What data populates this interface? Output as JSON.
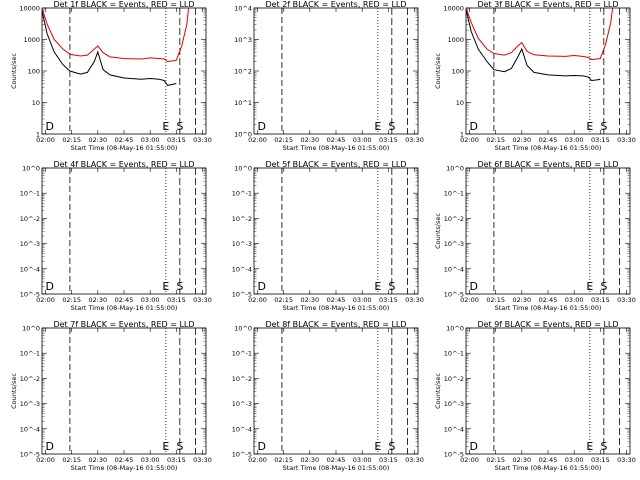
{
  "chart_data": [
    {
      "type": "line",
      "title": "Det 1f BLACK = Events, RED = LLD",
      "xlabel": "Start Time (08-May-16 01:55:00)",
      "ylabel": "Counts/sec",
      "x_ticks": [
        "02:00",
        "02:15",
        "02:30",
        "02:45",
        "03:00",
        "03:15",
        "03:30"
      ],
      "y_scale": "log",
      "y_ticks": [
        "1",
        "10",
        "100",
        "1000",
        "10000"
      ],
      "ylim": [
        1,
        10000
      ],
      "series": [
        {
          "color": "#000000",
          "x": [
            "01:58",
            "02:01",
            "02:05",
            "02:10",
            "02:14",
            "02:20",
            "02:24",
            "02:28",
            "02:30",
            "02:33",
            "02:37",
            "02:45",
            "02:55",
            "03:00",
            "03:05",
            "03:08",
            "03:10",
            "03:13",
            "03:15"
          ],
          "values": [
            8000,
            1500,
            400,
            160,
            100,
            80,
            90,
            200,
            400,
            110,
            75,
            60,
            55,
            58,
            55,
            50,
            35,
            38,
            40
          ]
        },
        {
          "color": "#e00000",
          "x": [
            "01:58",
            "02:01",
            "02:05",
            "02:10",
            "02:14",
            "02:20",
            "02:24",
            "02:28",
            "02:30",
            "02:33",
            "02:37",
            "02:45",
            "02:55",
            "03:00",
            "03:05",
            "03:08",
            "03:10",
            "03:13",
            "03:15",
            "03:18",
            "03:21",
            "03:22"
          ],
          "values": [
            10000,
            3000,
            1000,
            500,
            340,
            300,
            320,
            500,
            620,
            380,
            280,
            250,
            240,
            260,
            250,
            240,
            200,
            210,
            220,
            600,
            3000,
            10000
          ]
        }
      ],
      "markers": [
        "D",
        "E",
        "S"
      ]
    },
    {
      "type": "line",
      "title": "Det 2f BLACK = Events, RED = LLD",
      "xlabel": "Start Time (08-May-16 01:55:00)",
      "ylabel": "",
      "x_ticks": [
        "02:00",
        "02:15",
        "02:30",
        "02:45",
        "03:00",
        "03:15",
        "03:30"
      ],
      "y_scale": "log",
      "y_ticks": [
        "10^0",
        "10^1",
        "10^2",
        "10^3",
        "10^4"
      ],
      "ylim": [
        1,
        10000
      ],
      "series": [],
      "markers": [
        "D",
        "E",
        "S"
      ]
    },
    {
      "type": "line",
      "title": "Det 3f BLACK = Events, RED = LLD",
      "xlabel": "Start Time (08-May-16 01:55:00)",
      "ylabel": "Counts/sec",
      "x_ticks": [
        "02:00",
        "02:15",
        "02:30",
        "02:45",
        "03:00",
        "03:15",
        "03:30"
      ],
      "y_scale": "log",
      "y_ticks": [
        "1",
        "10",
        "100",
        "1000",
        "10000"
      ],
      "ylim": [
        1,
        10000
      ],
      "series": [
        {
          "color": "#000000",
          "x": [
            "01:58",
            "02:01",
            "02:05",
            "02:10",
            "02:14",
            "02:20",
            "02:24",
            "02:28",
            "02:30",
            "02:33",
            "02:37",
            "02:45",
            "02:55",
            "03:00",
            "03:05",
            "03:08",
            "03:10",
            "03:13",
            "03:15"
          ],
          "values": [
            9000,
            1800,
            500,
            200,
            110,
            95,
            120,
            300,
            500,
            150,
            90,
            75,
            70,
            72,
            70,
            65,
            50,
            52,
            55
          ]
        },
        {
          "color": "#e00000",
          "x": [
            "01:58",
            "02:01",
            "02:05",
            "02:10",
            "02:14",
            "02:20",
            "02:24",
            "02:28",
            "02:30",
            "02:33",
            "02:37",
            "02:45",
            "02:55",
            "03:00",
            "03:05",
            "03:08",
            "03:10",
            "03:13",
            "03:15",
            "03:18",
            "03:21",
            "03:22"
          ],
          "values": [
            10000,
            3500,
            1100,
            500,
            360,
            320,
            380,
            650,
            800,
            420,
            330,
            300,
            290,
            310,
            290,
            270,
            230,
            240,
            250,
            700,
            3500,
            10000
          ]
        }
      ],
      "markers": [
        "D",
        "E",
        "S"
      ]
    },
    {
      "type": "line",
      "title": "Det 4f BLACK = Events, RED = LLD",
      "xlabel": "Start Time (08-May-16 01:55:00)",
      "ylabel": "",
      "x_ticks": [
        "02:00",
        "02:15",
        "02:30",
        "02:45",
        "03:00",
        "03:15",
        "03:30"
      ],
      "y_scale": "log",
      "y_ticks": [
        "10^0",
        "10^-1",
        "10^-2",
        "10^-3",
        "10^-4",
        "10^-5"
      ],
      "ylim": [
        1e-05,
        1
      ],
      "series": [],
      "markers": [
        "D",
        "E",
        "S"
      ]
    },
    {
      "type": "line",
      "title": "Det 5f BLACK = Events, RED = LLD",
      "xlabel": "Start Time (08-May-16 01:55:00)",
      "ylabel": "",
      "x_ticks": [
        "02:00",
        "02:15",
        "02:30",
        "02:45",
        "03:00",
        "03:15",
        "03:30"
      ],
      "y_scale": "log",
      "y_ticks": [
        "10^0",
        "10^-1",
        "10^-2",
        "10^-3",
        "10^-4",
        "10^-5"
      ],
      "ylim": [
        1e-05,
        1
      ],
      "series": [],
      "markers": [
        "D",
        "E",
        "S"
      ]
    },
    {
      "type": "line",
      "title": "Det 6f BLACK = Events, RED = LLD",
      "xlabel": "Start Time (08-May-16 01:55:00)",
      "ylabel": "Counts/sec",
      "x_ticks": [
        "02:00",
        "02:15",
        "02:30",
        "02:45",
        "03:00",
        "03:15",
        "03:30"
      ],
      "y_scale": "log",
      "y_ticks": [
        "10^0",
        "10^-1",
        "10^-2",
        "10^-3",
        "10^-4",
        "10^-5"
      ],
      "ylim": [
        1e-05,
        1
      ],
      "series": [],
      "markers": [
        "D",
        "E",
        "S"
      ]
    },
    {
      "type": "line",
      "title": "Det 7f BLACK = Events, RED = LLD",
      "xlabel": "Start Time (08-May-16 01:55:00)",
      "ylabel": "Counts/sec",
      "x_ticks": [
        "02:00",
        "02:15",
        "02:30",
        "02:45",
        "03:00",
        "03:15",
        "03:30"
      ],
      "y_scale": "log",
      "y_ticks": [
        "10^0",
        "10^-1",
        "10^-2",
        "10^-3",
        "10^-4",
        "10^-5"
      ],
      "ylim": [
        1e-05,
        1
      ],
      "series": [],
      "markers": [
        "D",
        "E",
        "S"
      ]
    },
    {
      "type": "line",
      "title": "Det 8f BLACK = Events, RED = LLD",
      "xlabel": "Start Time (08-May-16 01:55:00)",
      "ylabel": "",
      "x_ticks": [
        "02:00",
        "02:15",
        "02:30",
        "02:45",
        "03:00",
        "03:15",
        "03:30"
      ],
      "y_scale": "log",
      "y_ticks": [
        "10^0",
        "10^-1",
        "10^-2",
        "10^-3",
        "10^-4",
        "10^-5"
      ],
      "ylim": [
        1e-05,
        1
      ],
      "series": [],
      "markers": [
        "D",
        "E",
        "S"
      ]
    },
    {
      "type": "line",
      "title": "Det 9f BLACK = Events, RED = LLD",
      "xlabel": "Start Time (08-May-16 01:55:00)",
      "ylabel": "Counts/sec",
      "x_ticks": [
        "02:00",
        "02:15",
        "02:30",
        "02:45",
        "03:00",
        "03:15",
        "03:30"
      ],
      "y_scale": "log",
      "y_ticks": [
        "10^0",
        "10^-1",
        "10^-2",
        "10^-3",
        "10^-4",
        "10^-5"
      ],
      "ylim": [
        1e-05,
        1
      ],
      "series": [],
      "markers": [
        "D",
        "E",
        "S"
      ]
    }
  ]
}
